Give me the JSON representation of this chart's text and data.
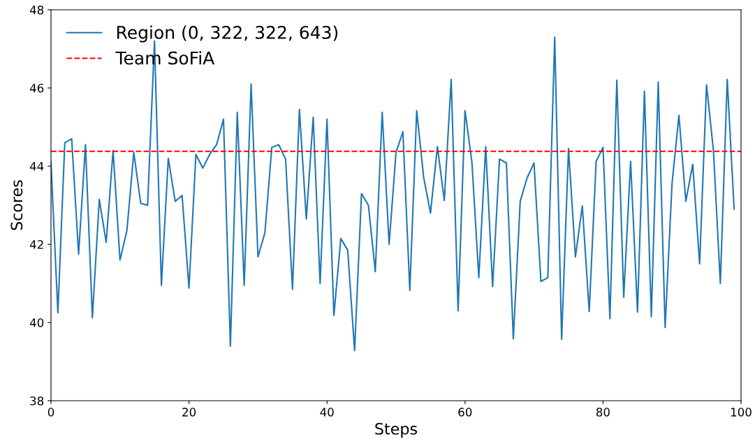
{
  "chart_data": {
    "type": "line",
    "xlabel": "Steps",
    "ylabel": "Scores",
    "x": [
      0,
      1,
      2,
      3,
      4,
      5,
      6,
      7,
      8,
      9,
      10,
      11,
      12,
      13,
      14,
      15,
      16,
      17,
      18,
      19,
      20,
      21,
      22,
      23,
      24,
      25,
      26,
      27,
      28,
      29,
      30,
      31,
      32,
      33,
      34,
      35,
      36,
      37,
      38,
      39,
      40,
      41,
      42,
      43,
      44,
      45,
      46,
      47,
      48,
      49,
      50,
      51,
      52,
      53,
      54,
      55,
      56,
      57,
      58,
      59,
      60,
      61,
      62,
      63,
      64,
      65,
      66,
      67,
      68,
      69,
      70,
      71,
      72,
      73,
      74,
      75,
      76,
      77,
      78,
      79,
      80,
      81,
      82,
      83,
      84,
      85,
      86,
      87,
      88,
      89,
      90,
      91,
      92,
      93,
      94,
      95,
      96,
      97,
      98,
      99
    ],
    "series": [
      {
        "name": "Region (0, 322, 322, 643)",
        "color": "#1f77b4",
        "values": [
          44.1,
          40.25,
          44.6,
          44.7,
          41.75,
          44.55,
          40.12,
          43.15,
          42.05,
          44.4,
          41.6,
          42.35,
          44.35,
          43.05,
          43.0,
          47.2,
          40.95,
          44.2,
          43.1,
          43.25,
          40.88,
          44.3,
          43.95,
          44.3,
          44.55,
          45.2,
          39.4,
          45.38,
          40.95,
          46.1,
          41.68,
          42.3,
          44.48,
          44.55,
          44.18,
          40.85,
          45.45,
          42.65,
          45.25,
          41.0,
          45.2,
          40.18,
          42.15,
          41.85,
          39.28,
          43.3,
          43.0,
          41.3,
          45.38,
          42.0,
          44.35,
          44.88,
          40.82,
          45.42,
          43.72,
          42.8,
          44.5,
          43.12,
          46.22,
          40.3,
          45.42,
          44.1,
          41.15,
          44.5,
          40.92,
          44.18,
          44.08,
          39.58,
          43.1,
          43.7,
          44.08,
          41.05,
          41.15,
          47.3,
          39.57,
          44.45,
          41.68,
          42.98,
          40.28,
          44.12,
          44.48,
          40.1,
          46.2,
          40.65,
          44.12,
          40.27,
          45.92,
          40.15,
          46.15,
          39.87,
          43.55,
          45.3,
          43.1,
          44.05,
          41.5,
          46.08,
          44.4,
          41.0,
          46.22,
          42.9
        ]
      }
    ],
    "ref_lines": [
      {
        "axis": "y",
        "value": 44.38,
        "label": "Team SoFiA",
        "color": "#ff0000",
        "line_style": "dashed"
      }
    ],
    "xlim": [
      0,
      100
    ],
    "xticks": [
      0,
      20,
      40,
      60,
      80,
      100
    ],
    "ylim": [
      38,
      48
    ],
    "yticks": [
      38,
      40,
      42,
      44,
      46,
      48
    ],
    "legend": "top left",
    "grid": false
  }
}
